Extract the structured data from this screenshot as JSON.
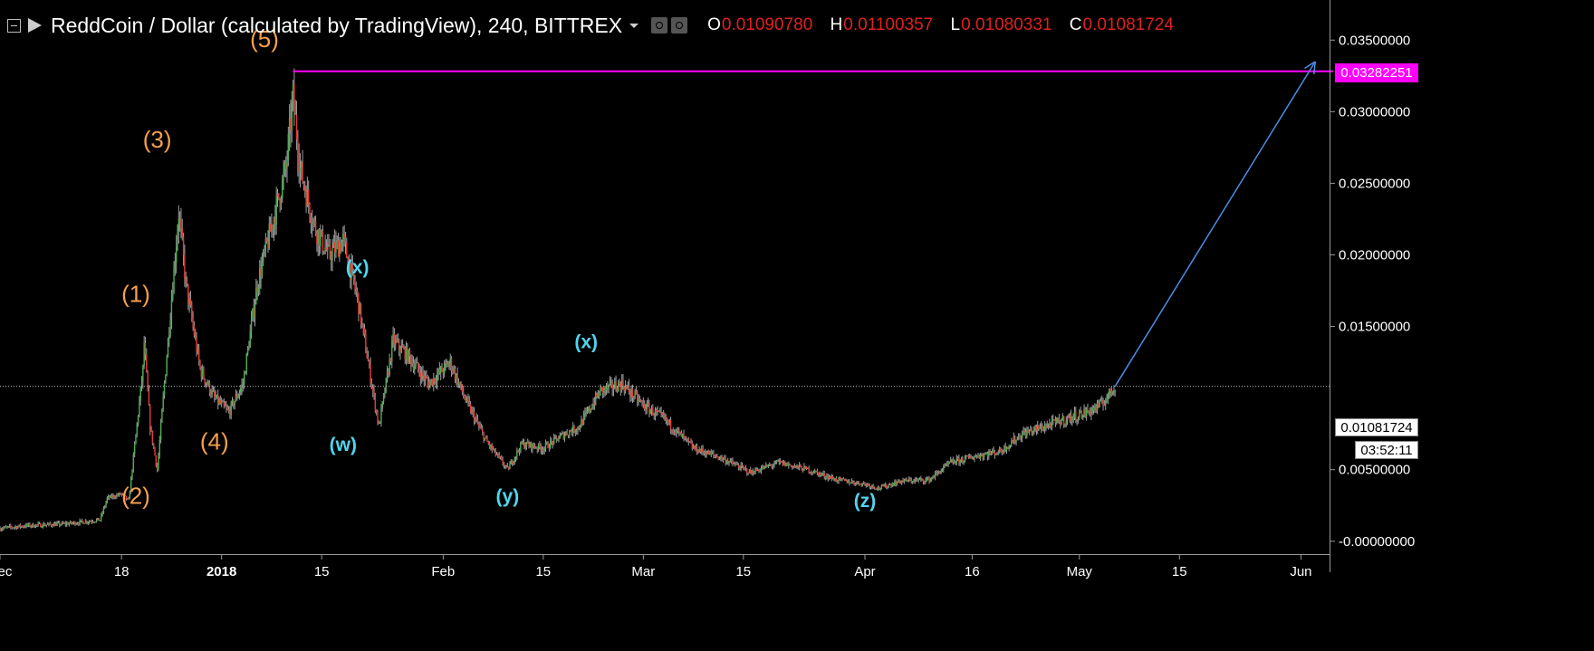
{
  "header": {
    "title": "ReddCoin / Dollar (calculated by TradingView), 240, BITTREX",
    "open_key": "O",
    "open": "0.01090780",
    "high_key": "H",
    "high": "0.01100357",
    "low_key": "L",
    "low": "0.01080331",
    "close_key": "C",
    "close": "0.01081724"
  },
  "tags": {
    "level": "0.03282251",
    "current": "0.01081724",
    "countdown": "03:52:11"
  },
  "colors": {
    "background": "#000000",
    "up": "#4caf50",
    "down": "#e53935",
    "wick": "#9e9e9e",
    "wave_orange": "#f6a04d",
    "wave_cyan": "#4fd6f0",
    "level_line": "#ff00ff",
    "arrow": "#4a8fe8"
  },
  "chart_data": {
    "type": "candlestick",
    "symbol": "ReddCoin / Dollar",
    "interval": "240",
    "exchange": "BITTREX",
    "y_ticks": [
      "0.03500000",
      "0.03000000",
      "0.02500000",
      "0.02000000",
      "0.01500000",
      "0.00500000",
      "-0.00000000"
    ],
    "y_tick_values": [
      0.035,
      0.03,
      0.025,
      0.02,
      0.015,
      0.005,
      0.0
    ],
    "ylim": [
      -0.0009,
      0.0378
    ],
    "xlim": [
      "2017-12-01",
      "2018-06-05"
    ],
    "x_ticks": [
      {
        "label": "Dec",
        "date": "2017-12-01"
      },
      {
        "label": "18",
        "date": "2017-12-18"
      },
      {
        "label": "2018",
        "date": "2018-01-01",
        "bold": true
      },
      {
        "label": "15",
        "date": "2018-01-15"
      },
      {
        "label": "Feb",
        "date": "2018-02-01"
      },
      {
        "label": "15",
        "date": "2018-02-15"
      },
      {
        "label": "Mar",
        "date": "2018-03-01"
      },
      {
        "label": "15",
        "date": "2018-03-15"
      },
      {
        "label": "Apr",
        "date": "2018-04-01"
      },
      {
        "label": "16",
        "date": "2018-04-16"
      },
      {
        "label": "May",
        "date": "2018-05-01"
      },
      {
        "label": "15",
        "date": "2018-05-15"
      },
      {
        "label": "Jun",
        "date": "2018-06-01"
      }
    ],
    "price_path": [
      [
        "2017-12-01",
        0.0009
      ],
      [
        "2017-12-05",
        0.0011
      ],
      [
        "2017-12-10",
        0.0012
      ],
      [
        "2017-12-15",
        0.0015
      ],
      [
        "2017-12-16",
        0.003
      ],
      [
        "2017-12-18",
        0.0033
      ],
      [
        "2017-12-19",
        0.0028
      ],
      [
        "2017-12-21",
        0.012
      ],
      [
        "2017-12-21",
        0.015
      ],
      [
        "2017-12-22",
        0.008
      ],
      [
        "2017-12-23",
        0.005
      ],
      [
        "2017-12-24",
        0.011
      ],
      [
        "2017-12-26",
        0.023
      ],
      [
        "2017-12-27",
        0.018
      ],
      [
        "2017-12-29",
        0.012
      ],
      [
        "2017-12-31",
        0.01
      ],
      [
        "2018-01-02",
        0.009
      ],
      [
        "2018-01-04",
        0.011
      ],
      [
        "2018-01-06",
        0.018
      ],
      [
        "2018-01-08",
        0.022
      ],
      [
        "2018-01-10",
        0.026
      ],
      [
        "2018-01-11",
        0.031
      ],
      [
        "2018-01-12",
        0.026
      ],
      [
        "2018-01-14",
        0.022
      ],
      [
        "2018-01-16",
        0.02
      ],
      [
        "2018-01-18",
        0.021
      ],
      [
        "2018-01-20",
        0.017
      ],
      [
        "2018-01-23",
        0.008
      ],
      [
        "2018-01-25",
        0.014
      ],
      [
        "2018-01-27",
        0.013
      ],
      [
        "2018-01-30",
        0.011
      ],
      [
        "2018-02-02",
        0.0125
      ],
      [
        "2018-02-04",
        0.01
      ],
      [
        "2018-02-07",
        0.007
      ],
      [
        "2018-02-10",
        0.005
      ],
      [
        "2018-02-12",
        0.0068
      ],
      [
        "2018-02-15",
        0.0065
      ],
      [
        "2018-02-18",
        0.0075
      ],
      [
        "2018-02-20",
        0.008
      ],
      [
        "2018-02-23",
        0.0105
      ],
      [
        "2018-02-26",
        0.011
      ],
      [
        "2018-03-01",
        0.0095
      ],
      [
        "2018-03-04",
        0.0085
      ],
      [
        "2018-03-08",
        0.0065
      ],
      [
        "2018-03-12",
        0.0058
      ],
      [
        "2018-03-16",
        0.0048
      ],
      [
        "2018-03-20",
        0.0055
      ],
      [
        "2018-03-24",
        0.005
      ],
      [
        "2018-03-28",
        0.0043
      ],
      [
        "2018-04-01",
        0.004
      ],
      [
        "2018-04-03",
        0.0037
      ],
      [
        "2018-04-06",
        0.0042
      ],
      [
        "2018-04-10",
        0.0043
      ],
      [
        "2018-04-13",
        0.0055
      ],
      [
        "2018-04-17",
        0.006
      ],
      [
        "2018-04-20",
        0.0063
      ],
      [
        "2018-04-23",
        0.0075
      ],
      [
        "2018-04-26",
        0.008
      ],
      [
        "2018-04-29",
        0.0085
      ],
      [
        "2018-05-02",
        0.009
      ],
      [
        "2018-05-04",
        0.0095
      ],
      [
        "2018-05-06",
        0.0108
      ]
    ],
    "level_line": {
      "value": 0.03282251,
      "from": "2018-01-11",
      "to": "2018-06-06"
    },
    "current_price_line": 0.01081724,
    "projection_arrow": {
      "from": [
        "2018-05-06",
        0.01081724
      ],
      "to": [
        "2018-06-03",
        0.0335
      ]
    },
    "wave_labels": [
      {
        "text": "(1)",
        "date": "2017-12-20",
        "price": 0.0167,
        "color": "orange"
      },
      {
        "text": "(2)",
        "date": "2017-12-20",
        "price": 0.0026,
        "color": "orange"
      },
      {
        "text": "(3)",
        "date": "2017-12-23",
        "price": 0.0275,
        "color": "orange"
      },
      {
        "text": "(4)",
        "date": "2017-12-31",
        "price": 0.0064,
        "color": "orange"
      },
      {
        "text": "(5)",
        "date": "2018-01-07",
        "price": 0.0345,
        "color": "orange"
      },
      {
        "text": "(w)",
        "date": "2018-01-18",
        "price": 0.0063,
        "color": "cyan"
      },
      {
        "text": "(x)",
        "date": "2018-01-20",
        "price": 0.0187,
        "color": "cyan"
      },
      {
        "text": "(y)",
        "date": "2018-02-10",
        "price": 0.0027,
        "color": "cyan"
      },
      {
        "text": "(x)",
        "date": "2018-02-21",
        "price": 0.0135,
        "color": "cyan"
      },
      {
        "text": "(z)",
        "date": "2018-04-01",
        "price": 0.0024,
        "color": "cyan"
      }
    ]
  }
}
